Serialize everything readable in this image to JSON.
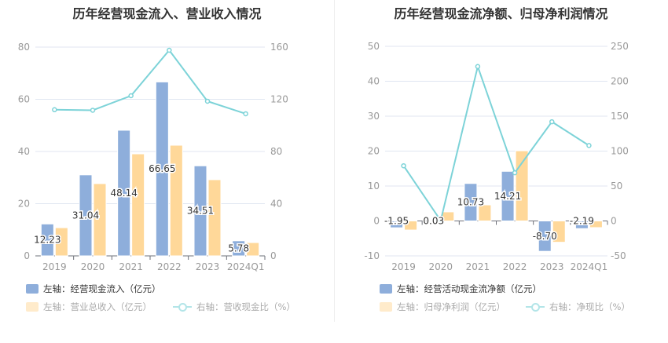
{
  "colors": {
    "bar1": "#8eaedb",
    "bar2": "#ffd899",
    "line": "#7dd3d8",
    "legend_bar2_dim": "#ffebcb"
  },
  "chart_data": [
    {
      "type": "bar+line",
      "title": "历年经营现金流入、营业收入情况",
      "categories": [
        "2019",
        "2020",
        "2021",
        "2022",
        "2023",
        "2024Q1"
      ],
      "left_axis": {
        "ylim": [
          0,
          80
        ],
        "ticks": [
          "0",
          "20",
          "40",
          "60",
          "80"
        ]
      },
      "right_axis": {
        "ylim": [
          0,
          160
        ],
        "ticks": [
          "0",
          "40",
          "80",
          "120",
          "160"
        ]
      },
      "grid": true,
      "legend_position": "bottom",
      "series": [
        {
          "name": "左轴：经营现金流入（亿元）",
          "type": "bar",
          "axis": "left",
          "values": [
            12.23,
            31.04,
            48.14,
            66.65,
            34.51,
            5.78
          ],
          "labels": [
            "12.23",
            "31.04",
            "48.14",
            "66.65",
            "34.51",
            "5.78"
          ]
        },
        {
          "name": "左轴：营业总收入（亿元）",
          "type": "bar",
          "axis": "left",
          "values": [
            10.8,
            27.7,
            39.1,
            42.4,
            29.2,
            5.1
          ]
        },
        {
          "name": "右轴：营收现金比（%）",
          "type": "line",
          "axis": "right",
          "values": [
            112,
            111.6,
            122.7,
            157.6,
            118.5,
            108.9
          ]
        }
      ]
    },
    {
      "type": "bar+line",
      "title": "历年经营现金流净额、归母净利润情况",
      "categories": [
        "2019",
        "2020",
        "2021",
        "2022",
        "2023",
        "2024Q1"
      ],
      "left_axis": {
        "ylim": [
          -10,
          50
        ],
        "ticks": [
          "-10",
          "0",
          "10",
          "20",
          "30",
          "40",
          "50"
        ]
      },
      "right_axis": {
        "ylim": [
          -50,
          250
        ],
        "ticks": [
          "-50",
          "0",
          "50",
          "100",
          "150",
          "200",
          "250"
        ]
      },
      "grid": true,
      "legend_position": "bottom",
      "series": [
        {
          "name": "左轴：经营活动现金流净额（亿元）",
          "type": "bar",
          "axis": "left",
          "values": [
            -1.95,
            0.03,
            10.73,
            14.21,
            -8.7,
            -2.19
          ],
          "labels": [
            "-1.95",
            "0.03",
            "10.73",
            "14.21",
            "-8.70",
            "-2.19"
          ]
        },
        {
          "name": "左轴：归母净利润（亿元）",
          "type": "bar",
          "axis": "left",
          "values": [
            -2.6,
            2.6,
            4.6,
            20.1,
            -6.1,
            -1.9
          ]
        },
        {
          "name": "右轴：净现比（%）",
          "type": "line",
          "axis": "right",
          "values": [
            79,
            0.5,
            221,
            69,
            142,
            108
          ]
        }
      ]
    }
  ]
}
